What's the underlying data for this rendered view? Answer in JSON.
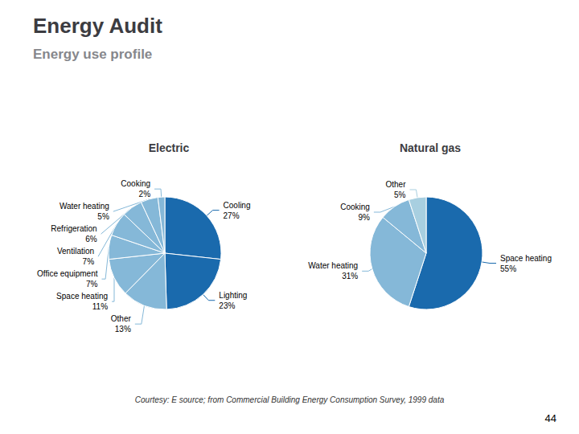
{
  "title": "Energy Audit",
  "subtitle": "Energy use profile",
  "annotations": [
    "Courtesy: E source; from Commercial Building Energy Consumption Survey, 1999 data",
    "44"
  ],
  "chart_data": [
    {
      "type": "pie",
      "title": "Electric",
      "categories": [
        "Cooling",
        "Lighting",
        "Other",
        "Space heating",
        "Office equipment",
        "Ventilation",
        "Refrigeration",
        "Water heating",
        "Cooking"
      ],
      "values": [
        27,
        23,
        13,
        11,
        7,
        7,
        6,
        5,
        2
      ],
      "value_labels": [
        "27%",
        "23%",
        "13%",
        "11%",
        "7%",
        "7%",
        "6%",
        "5%",
        "2%"
      ],
      "colors": [
        "#1a6aad",
        "#1a6aad",
        "#85b8d8",
        "#85b8d8",
        "#85b8d8",
        "#85b8d8",
        "#85b8d8",
        "#85b8d8",
        "#85b8d8"
      ],
      "data_labels": true
    },
    {
      "type": "pie",
      "title": "Natural gas",
      "categories": [
        "Space heating",
        "Water heating",
        "Cooking",
        "Other"
      ],
      "values": [
        55,
        31,
        9,
        5
      ],
      "value_labels": [
        "55%",
        "31%",
        "9%",
        "5%"
      ],
      "colors": [
        "#1a6aad",
        "#85b8d8",
        "#85b8d8",
        "#a8cfe0"
      ],
      "data_labels": true
    }
  ]
}
